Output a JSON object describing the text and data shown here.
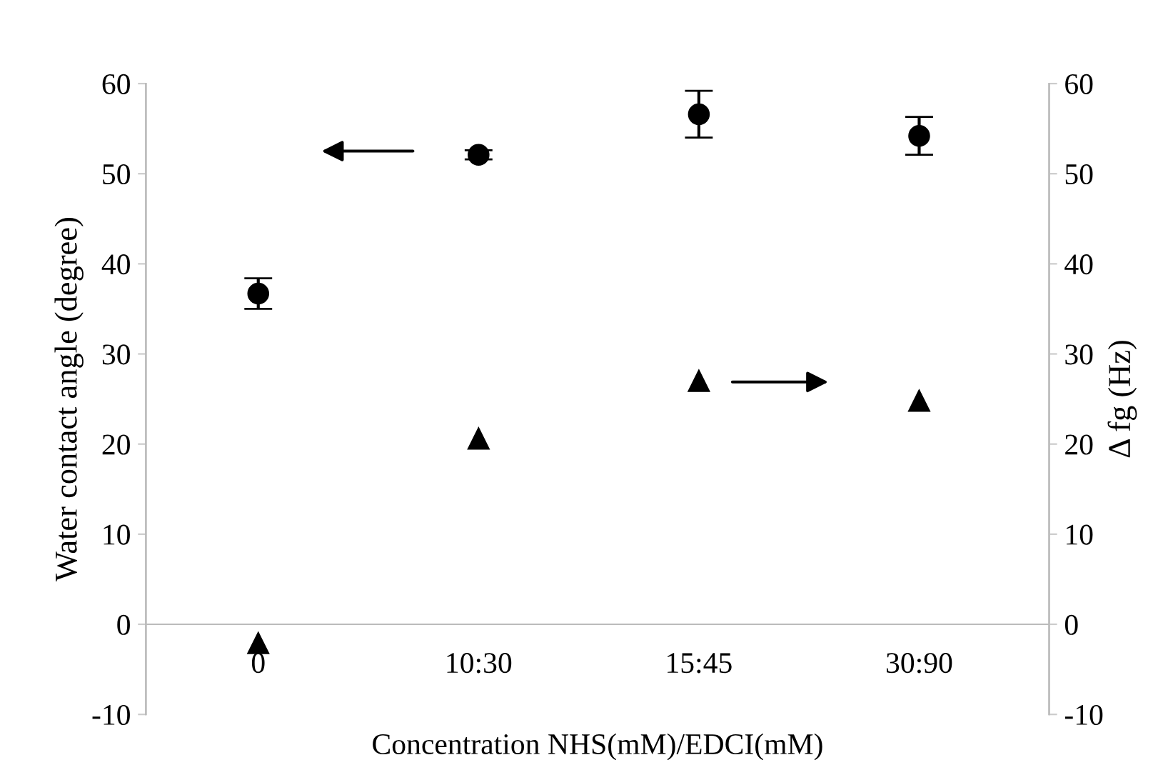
{
  "chart_data": {
    "type": "scatter",
    "categories": [
      "0",
      "10:30",
      "15:45",
      "30:90"
    ],
    "xlabel": "Concentration NHS(mM)/EDCI(mM)",
    "ylabel": "Water contact angle (degree)",
    "y2label": "Δ fg (Hz)",
    "series": [
      {
        "marker": "circle",
        "color": "#000000",
        "values": [
          36.7,
          52.1,
          56.6,
          54.2
        ],
        "errors": [
          1.7,
          0.5,
          2.6,
          2.1
        ]
      },
      {
        "marker": "triangle",
        "color": "#000000",
        "axis": "y2",
        "values": [
          -2.1,
          20.6,
          27.0,
          24.8
        ]
      }
    ],
    "ylim": [
      -10,
      60
    ],
    "yticks": [
      -10,
      0,
      10,
      20,
      30,
      40,
      50,
      60
    ],
    "y2lim": [
      -10,
      60
    ],
    "y2ticks": [
      -10,
      0,
      10,
      20,
      30,
      40,
      50,
      60
    ],
    "grid": false,
    "legend": false
  }
}
